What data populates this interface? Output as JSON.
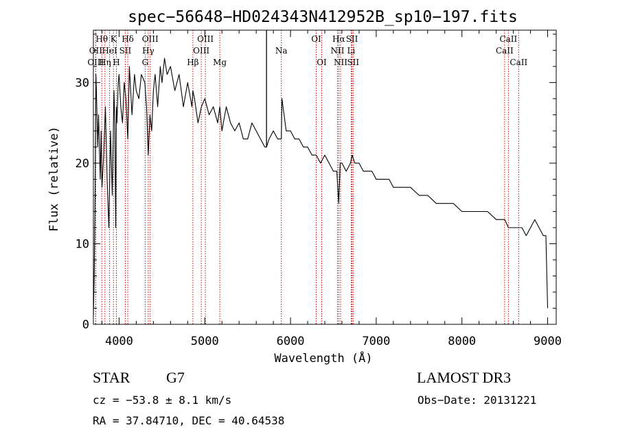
{
  "chart_data": {
    "type": "line",
    "title": "spec−56648−HD024343N412952B_sp10−197.fits",
    "xlabel": "Wavelength (Å)",
    "ylabel": "Flux (relative)",
    "xlim": [
      3700,
      9100
    ],
    "ylim": [
      0,
      36.5
    ],
    "xticks": [
      4000,
      5000,
      6000,
      7000,
      8000,
      9000
    ],
    "yticks": [
      0,
      10,
      20,
      30
    ],
    "xtick_labels": [
      "4000",
      "5000",
      "6000",
      "7000",
      "8000",
      "9000"
    ],
    "ytick_labels": [
      "0",
      "10",
      "20",
      "30"
    ],
    "x_minor_step": 200,
    "y_minor_step": 2,
    "grid": false,
    "series": [
      {
        "name": "flux",
        "x": [
          3700,
          3710,
          3720,
          3730,
          3740,
          3750,
          3760,
          3770,
          3780,
          3790,
          3800,
          3820,
          3840,
          3860,
          3880,
          3900,
          3920,
          3940,
          3950,
          3960,
          3968,
          3975,
          3990,
          4000,
          4020,
          4040,
          4060,
          4080,
          4101,
          4120,
          4150,
          4180,
          4200,
          4230,
          4260,
          4300,
          4320,
          4340,
          4360,
          4380,
          4400,
          4420,
          4450,
          4480,
          4500,
          4530,
          4560,
          4600,
          4650,
          4700,
          4750,
          4800,
          4850,
          4861,
          4880,
          4920,
          4960,
          5000,
          5050,
          5100,
          5150,
          5175,
          5200,
          5250,
          5300,
          5350,
          5400,
          5450,
          5500,
          5550,
          5600,
          5650,
          5700,
          5720,
          5750,
          5800,
          5850,
          5893,
          5900,
          5950,
          6000,
          6050,
          6100,
          6150,
          6200,
          6250,
          6300,
          6350,
          6400,
          6450,
          6500,
          6540,
          6563,
          6580,
          6600,
          6650,
          6700,
          6720,
          6750,
          6800,
          6850,
          6900,
          6950,
          7000,
          7050,
          7100,
          7150,
          7200,
          7300,
          7400,
          7500,
          7600,
          7700,
          7800,
          7900,
          8000,
          8100,
          8200,
          8300,
          8400,
          8500,
          8542,
          8600,
          8662,
          8700,
          8750,
          8800,
          8850,
          8900,
          8950,
          8980,
          9000
        ],
        "y": [
          1,
          6,
          16,
          31,
          27,
          22,
          26,
          22,
          18,
          24,
          17,
          21,
          27,
          18,
          12,
          24,
          16,
          29,
          25,
          12,
          27,
          25,
          30,
          31,
          27,
          25,
          30,
          28,
          23,
          32,
          26,
          31,
          29,
          28,
          31,
          30,
          27,
          21,
          26,
          24,
          29,
          31,
          27,
          32,
          30,
          33,
          31,
          32,
          29,
          31,
          27,
          30,
          27,
          29,
          28,
          25,
          27,
          28,
          26,
          27,
          25,
          27,
          24,
          27,
          25,
          24,
          25,
          23,
          23,
          25,
          24,
          23,
          22,
          22,
          23,
          24,
          23,
          23,
          28,
          24,
          24,
          23,
          23,
          22,
          22,
          21,
          21,
          20,
          21,
          20,
          19,
          19,
          15,
          20,
          20,
          19,
          20,
          21,
          20,
          20,
          19,
          19,
          19,
          18,
          18,
          18,
          18,
          17,
          17,
          17,
          16,
          16,
          15,
          15,
          15,
          14,
          14,
          14,
          14,
          13,
          13,
          12,
          12,
          12,
          12,
          11,
          12,
          13,
          12,
          11,
          11,
          2
        ],
        "spike": {
          "x": 5720,
          "y": 38
        }
      }
    ],
    "lines": [
      {
        "label": "Hθ",
        "x": 3798,
        "row": 0
      },
      {
        "label": "OII",
        "x": 3727,
        "row": 1
      },
      {
        "label": "OIII",
        "x": 3727,
        "row": 2
      },
      {
        "label": "K",
        "x": 3934,
        "row": 0
      },
      {
        "label": "HeI",
        "x": 3889,
        "row": 1
      },
      {
        "label": "Hη",
        "x": 3835,
        "row": 2
      },
      {
        "label": "Hδ",
        "x": 4101,
        "row": 0
      },
      {
        "label": "SII",
        "x": 4072,
        "row": 1
      },
      {
        "label": "H",
        "x": 3968,
        "row": 2
      },
      {
        "label": "OIII",
        "x": 4363,
        "row": 0
      },
      {
        "label": "Hγ",
        "x": 4340,
        "row": 1
      },
      {
        "label": "G",
        "x": 4304,
        "row": 2
      },
      {
        "label": "OIII",
        "x": 5007,
        "row": 0
      },
      {
        "label": "OIII",
        "x": 4959,
        "row": 1
      },
      {
        "label": "Hβ",
        "x": 4861,
        "row": 2
      },
      {
        "label": "Mg",
        "x": 5175,
        "row": 2
      },
      {
        "label": "Na",
        "x": 5893,
        "row": 1
      },
      {
        "label": "OI",
        "x": 6300,
        "row": 0
      },
      {
        "label": "OI",
        "x": 6364,
        "row": 2
      },
      {
        "label": "Hα",
        "x": 6563,
        "row": 0
      },
      {
        "label": "SII",
        "x": 6717,
        "row": 0
      },
      {
        "label": "NII",
        "x": 6548,
        "row": 1
      },
      {
        "label": "Li",
        "x": 6708,
        "row": 1
      },
      {
        "label": "NII",
        "x": 6584,
        "row": 2
      },
      {
        "label": "SII",
        "x": 6731,
        "row": 2
      },
      {
        "label": "CaII",
        "x": 8542,
        "row": 0
      },
      {
        "label": "CaII",
        "x": 8498,
        "row": 1
      },
      {
        "label": "CaII",
        "x": 8662,
        "row": 2
      }
    ],
    "colors": {
      "spectrum": "#000000",
      "lines": "#cc0000",
      "axes": "#000000"
    }
  },
  "info": {
    "class_label": "STAR",
    "subclass": "G7",
    "survey": "LAMOST DR3",
    "cz": "cz = −53.8 ± 8.1 km/s",
    "obs_date": "Obs−Date: 20131221",
    "coords": "RA =  37.84710, DEC =  40.64538"
  }
}
